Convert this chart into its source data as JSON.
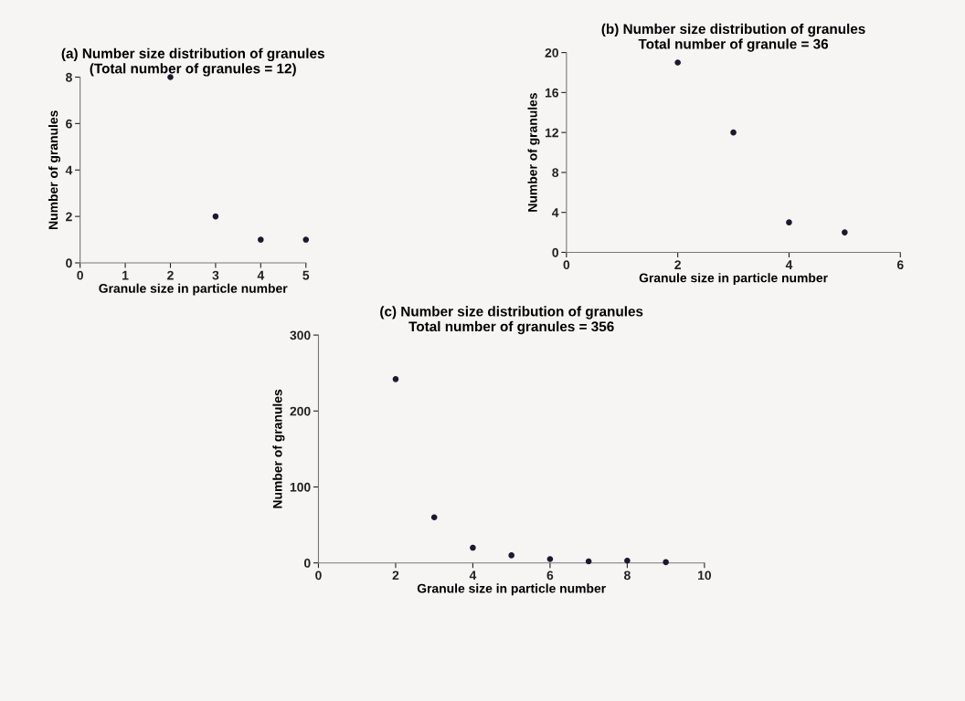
{
  "chart_data": [
    {
      "type": "scatter",
      "title": "(a) Number size distribution of granules\n(Total number of granules = 12)",
      "xlabel": "Granule size in particle number",
      "ylabel": "Number of granules",
      "x": [
        2,
        3,
        4,
        5
      ],
      "values": [
        8,
        2,
        1,
        1
      ],
      "color": "#1a1a2e",
      "xlim": [
        0,
        5
      ],
      "xticks": [
        0,
        1,
        2,
        3,
        4,
        5
      ],
      "ylim": [
        0,
        8
      ],
      "yticks": [
        0,
        2,
        4,
        6,
        8
      ],
      "marker": "circle",
      "grid": false,
      "legend": false
    },
    {
      "type": "scatter",
      "title": "(b) Number size distribution of granules\nTotal number of granule = 36",
      "xlabel": "Granule size in particle number",
      "ylabel": "Number of granules",
      "x": [
        2,
        3,
        4,
        5
      ],
      "values": [
        19,
        12,
        3,
        2
      ],
      "color": "#1a1a2e",
      "xlim": [
        0,
        6
      ],
      "xticks": [
        0,
        2,
        4,
        6
      ],
      "ylim": [
        0,
        20
      ],
      "yticks": [
        0,
        4,
        8,
        12,
        16,
        20
      ],
      "marker": "circle",
      "grid": false,
      "legend": false
    },
    {
      "type": "scatter",
      "title": "(c) Number size distribution of granules\nTotal number of granules = 356",
      "xlabel": "Granule size in particle number",
      "ylabel": "Number of granules",
      "x": [
        2,
        3,
        4,
        5,
        6,
        7,
        8,
        9
      ],
      "values": [
        242,
        60,
        20,
        10,
        5,
        2,
        3,
        1
      ],
      "color": "#1a1a2e",
      "xlim": [
        0,
        10
      ],
      "xticks": [
        0,
        2,
        4,
        6,
        8,
        10
      ],
      "ylim": [
        0,
        300
      ],
      "yticks": [
        0,
        100,
        200,
        300
      ],
      "marker": "circle",
      "grid": false,
      "legend": false
    }
  ]
}
